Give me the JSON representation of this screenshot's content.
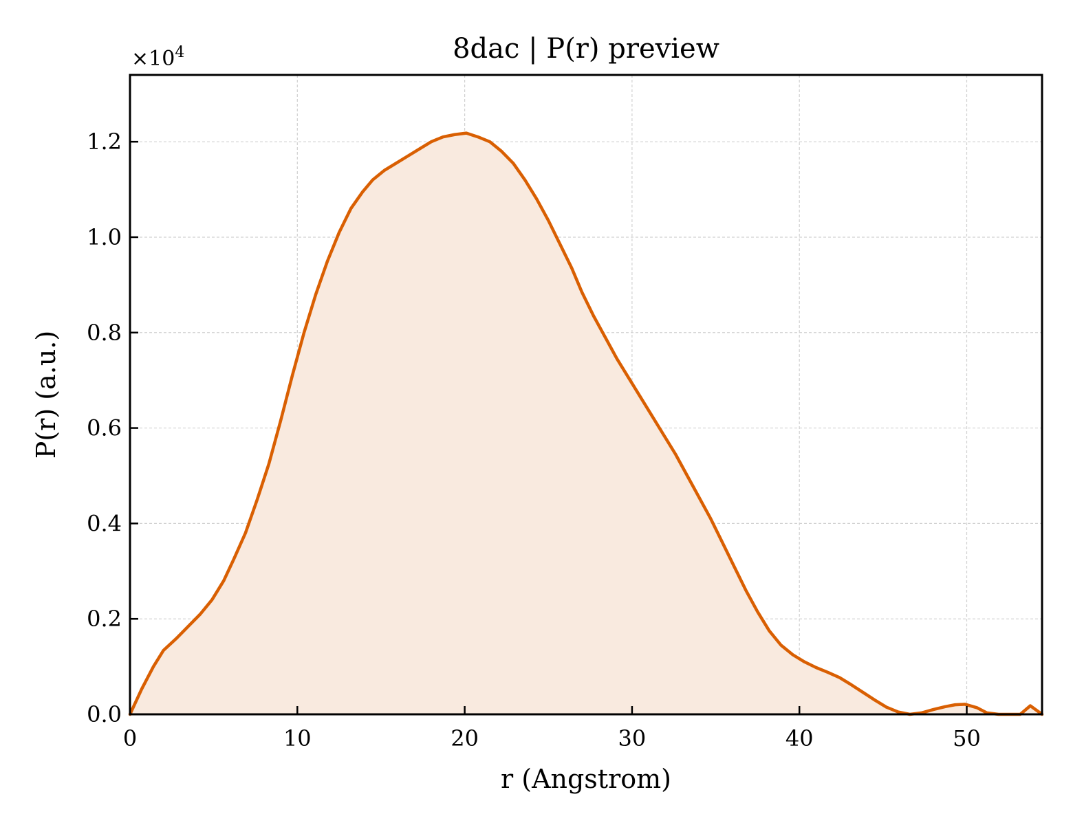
{
  "colors": {
    "line": "#d95f02",
    "fill": "#f9eadf",
    "grid": "#d0d0d0",
    "axis": "#000000"
  },
  "chart_data": {
    "type": "area",
    "title": "8dac | P(r) preview",
    "xlabel": "r (Angstrom)",
    "ylabel": "P(r) (a.u.)",
    "y_offset_label": "×10",
    "y_offset_exponent": "4",
    "xlim": [
      0,
      54.5
    ],
    "ylim": [
      0,
      1.34
    ],
    "grid": true,
    "x_ticks": [
      0,
      10,
      20,
      30,
      40,
      50
    ],
    "x_tick_labels": [
      "0",
      "10",
      "20",
      "30",
      "40",
      "50"
    ],
    "y_ticks": [
      0.0,
      0.2,
      0.4,
      0.6,
      0.8,
      1.0,
      1.2
    ],
    "y_tick_labels": [
      "0.0",
      "0.2",
      "0.4",
      "0.6",
      "0.8",
      "1.0",
      "1.2"
    ],
    "series": [
      {
        "x": [
          0,
          0.7,
          1.4,
          2.0,
          2.8,
          3.5,
          4.2,
          4.9,
          5.6,
          6.2,
          6.9,
          7.6,
          8.3,
          9.0,
          9.7,
          10.4,
          11.1,
          11.8,
          12.5,
          13.2,
          13.9,
          14.5,
          15.2,
          15.9,
          16.6,
          17.3,
          18.0,
          18.7,
          19.4,
          20.1,
          20.8,
          21.5,
          22.2,
          22.9,
          23.6,
          24.3,
          25.0,
          25.7,
          26.4,
          27.0,
          27.7,
          28.4,
          29.1,
          29.8,
          30.5,
          31.2,
          31.9,
          32.6,
          33.3,
          34.0,
          34.7,
          35.4,
          36.1,
          36.8,
          37.5,
          38.2,
          38.9,
          39.6,
          40.3,
          41.0,
          41.7,
          42.4,
          43.1,
          43.8,
          44.5,
          45.2,
          45.9,
          46.6,
          47.3,
          48.0,
          48.7,
          49.3,
          49.9,
          50.6,
          51.2,
          51.9,
          52.6,
          53.2,
          53.8,
          54.5
        ],
        "y": [
          0.0,
          0.053,
          0.1,
          0.134,
          0.16,
          0.185,
          0.21,
          0.24,
          0.28,
          0.325,
          0.38,
          0.45,
          0.525,
          0.615,
          0.71,
          0.8,
          0.88,
          0.95,
          1.01,
          1.06,
          1.095,
          1.12,
          1.14,
          1.155,
          1.17,
          1.185,
          1.2,
          1.21,
          1.215,
          1.218,
          1.21,
          1.2,
          1.18,
          1.155,
          1.12,
          1.08,
          1.035,
          0.985,
          0.935,
          0.885,
          0.835,
          0.79,
          0.745,
          0.705,
          0.665,
          0.625,
          0.585,
          0.545,
          0.5,
          0.455,
          0.41,
          0.36,
          0.31,
          0.26,
          0.215,
          0.175,
          0.145,
          0.125,
          0.11,
          0.098,
          0.088,
          0.077,
          0.062,
          0.046,
          0.03,
          0.015,
          0.005,
          0.0,
          0.003,
          0.01,
          0.016,
          0.02,
          0.021,
          0.014,
          0.003,
          0.0,
          0.0,
          0.0,
          0.018,
          0.0
        ]
      }
    ]
  }
}
